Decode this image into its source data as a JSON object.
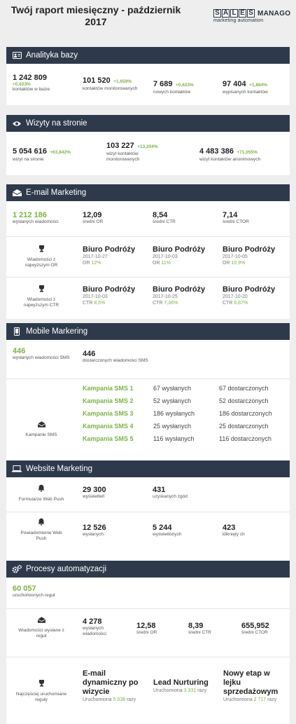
{
  "header": {
    "title": "Twój raport miesięczny - październik 2017",
    "logo_letters": [
      "S",
      "A",
      "L",
      "E",
      "S"
    ],
    "logo_word": "MANAGO",
    "logo_sub": "marketing automation"
  },
  "colors": {
    "header_bg": "#2e3a4b",
    "accent_green": "#7cb342"
  },
  "analytics": {
    "title": "Analityka bazy",
    "icon": "id-card-icon",
    "stats": [
      {
        "value": "1 242 809",
        "inc": "+0,623%",
        "label": "kontaktów w bazie"
      },
      {
        "value": "101 520",
        "inc": "+1,659%",
        "label": "kontaktów monitorowanych"
      },
      {
        "value": "7 689",
        "inc": "+0,623%",
        "label": "nowych kontaktów"
      },
      {
        "value": "97 404",
        "inc": "+1,864%",
        "label": "wypisanych kontaktów"
      }
    ]
  },
  "visits": {
    "title": "Wizyty na stronie",
    "icon": "eye-icon",
    "stats": [
      {
        "value": "5 054 616",
        "inc": "+63,842%",
        "label": "wizyt na stronie"
      },
      {
        "value": "103 227",
        "inc": "+13,204%",
        "label": "wizyt kontaktów monitorowanych"
      },
      {
        "value": "4 483 386",
        "inc": "+71,055%",
        "label": "wizyt kontaktów anonimowych"
      }
    ]
  },
  "email": {
    "title": "E-mail Marketing",
    "icon": "envelope-icon",
    "stats": [
      {
        "value": "1 212 186",
        "label": "wysłanych wiadomości"
      },
      {
        "value": "12,09",
        "label": "średni OR"
      },
      {
        "value": "8,54",
        "label": "średni CTR"
      },
      {
        "value": "7,14",
        "label": "średni CTOR"
      }
    ],
    "top_or": {
      "label": "Wiadomości z najwyższym OR",
      "items": [
        {
          "name": "Biuro Podróży",
          "date": "2017-10-27",
          "metric": "OR",
          "val": "12%"
        },
        {
          "name": "Biuro Podróży",
          "date": "2017-10-03",
          "metric": "OR",
          "val": "11%"
        },
        {
          "name": "Biuro Podróży",
          "date": "2017-10-05",
          "metric": "OR",
          "val": "10,9%"
        }
      ]
    },
    "top_ctr": {
      "label": "Wiadomości z najwyższym CTR",
      "items": [
        {
          "name": "Biuro Podróży",
          "date": "2017-10-03",
          "metric": "CTR",
          "val": "8,5%"
        },
        {
          "name": "Biuro Podróży",
          "date": "2017-10-25",
          "metric": "CTR",
          "val": "7,36%"
        },
        {
          "name": "Biuro Podróży",
          "date": "2017-10-20",
          "metric": "CTR",
          "val": "6,87%"
        }
      ]
    }
  },
  "mobile": {
    "title": "Mobile Markering",
    "icon": "mobile-icon",
    "stats": [
      {
        "value": "446",
        "label": "wysłanych wiadomości SMS"
      },
      {
        "value": "446",
        "label": "dostarczonych wiadomości SMS"
      }
    ],
    "campaigns_label": "Kampanie SMS",
    "campaigns": [
      {
        "name": "Kampania SMS 1",
        "sent": "67 wysłanych",
        "delivered": "67 dostarczonych"
      },
      {
        "name": "Kampania SMS 2",
        "sent": "52 wysłanych",
        "delivered": "52 dostarczonych"
      },
      {
        "name": "Kampania SMS 3",
        "sent": "186 wysłanych",
        "delivered": "186 dostarczonych"
      },
      {
        "name": "Kampania SMS 4",
        "sent": "25 wysłanych",
        "delivered": "25 dostarczonych"
      },
      {
        "name": "Kampania SMS 5",
        "sent": "116 wysłanych",
        "delivered": "116 dostarczonych"
      }
    ]
  },
  "website": {
    "title": "Website Marketing",
    "icon": "laptop-icon",
    "forms": {
      "label": "Formularze Web Push",
      "stats": [
        {
          "value": "29 300",
          "label": "wyświetleń"
        },
        {
          "value": "431",
          "label": "uzyskanych zgód"
        }
      ]
    },
    "notifications": {
      "label": "Powiadomienie Web Push",
      "stats": [
        {
          "value": "12 526",
          "label": "wysłanych"
        },
        {
          "value": "5 244",
          "label": "wyświetlonych"
        },
        {
          "value": "423",
          "label": "kliknięty ch"
        }
      ]
    }
  },
  "automation": {
    "title": "Procesy automatyzacji",
    "icon": "gears-icon",
    "rules": {
      "value": "60 057",
      "label": "uruchomionych reguł"
    },
    "sent": {
      "label": "Wiadomości wysłane z reguł",
      "stats": [
        {
          "value": "4 278",
          "label": "wysłanych wiadomości"
        },
        {
          "value": "12,58",
          "label": "średni OR"
        },
        {
          "value": "8,39",
          "label": "średni CTR"
        },
        {
          "value": "655,952",
          "label": "średni CTOR"
        }
      ]
    },
    "frequent": {
      "label": "Najczęściej uruchomiane reguły",
      "items": [
        {
          "name": "E-mail dynamiczny po wizycie",
          "prefix": "Uruchomiona",
          "count": "5 038",
          "suffix": "razy"
        },
        {
          "name": "Lead Nurturing",
          "prefix": "Uruchomiona",
          "count": "3 331",
          "suffix": "razy"
        },
        {
          "name": "Nowy etap w lejku sprzedażowym",
          "prefix": "Uruchomiona",
          "count": "2 717",
          "suffix": "razy"
        }
      ]
    }
  }
}
